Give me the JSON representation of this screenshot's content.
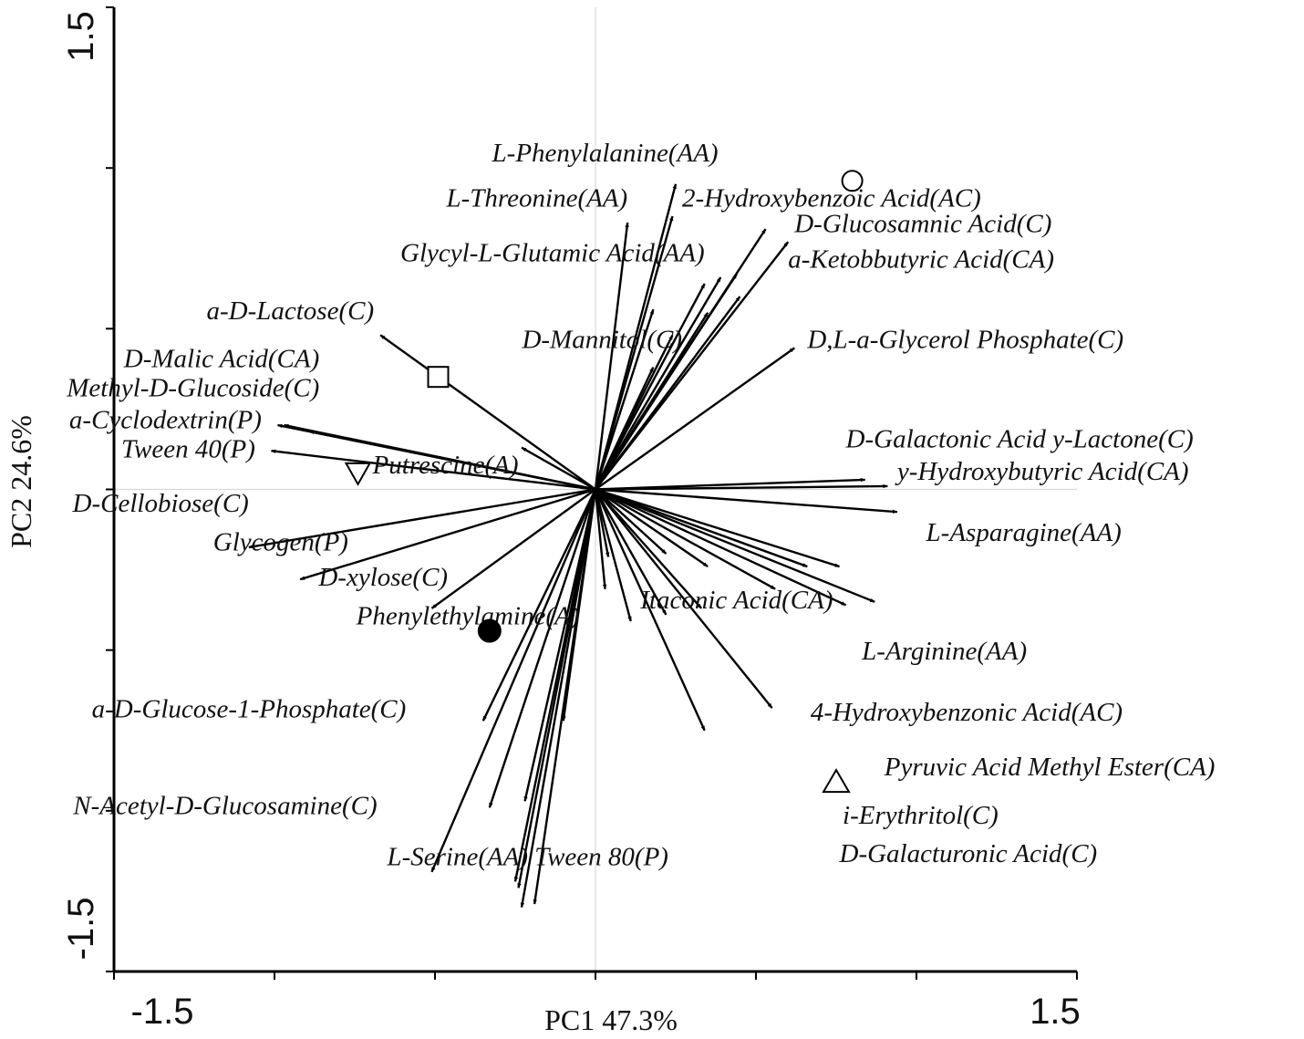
{
  "chart_data": {
    "type": "scatter",
    "subtype": "pca-biplot",
    "xlabel": "PC1  47.3%",
    "ylabel": "PC2  24.6%",
    "xlim": [
      -1.5,
      1.5
    ],
    "ylim": [
      -1.5,
      1.5
    ],
    "x_tick_labels": [
      "-1.5",
      "1.5"
    ],
    "y_tick_labels": [
      "1.5",
      "-1.5"
    ],
    "grid": false,
    "zero_lines": true,
    "vectors": [
      {
        "label": "L-Phenylalanine(AA)",
        "x": 0.25,
        "y": 0.95,
        "lx": 0.03,
        "ly": 1.02,
        "anchor": "middle"
      },
      {
        "label": "L-Threonine(AA)",
        "x": 0.1,
        "y": 0.83,
        "lx": 0.1,
        "ly": 0.88,
        "anchor": "end"
      },
      {
        "label": "2-Hydroxybenzoic Acid(AC)",
        "x": 0.24,
        "y": 0.85,
        "lx": 0.27,
        "ly": 0.88,
        "anchor": "start"
      },
      {
        "label": "D-Glucosamnic Acid(C)",
        "x": 0.53,
        "y": 0.81,
        "lx": 0.62,
        "ly": 0.8,
        "anchor": "start"
      },
      {
        "label": "a-Ketobbutyric Acid(CA)",
        "x": 0.6,
        "y": 0.77,
        "lx": 0.6,
        "ly": 0.69,
        "anchor": "start"
      },
      {
        "label": "Glycyl-L-Glutamic Acid(AA)",
        "x": 0.34,
        "y": 0.64,
        "lx": 0.34,
        "ly": 0.71,
        "anchor": "end"
      },
      {
        "label": "D-Mannitol(C)",
        "x": 0.39,
        "y": 0.66,
        "lx": 0.27,
        "ly": 0.44,
        "anchor": "end"
      },
      {
        "label": "D,L-a-Glycerol Phosphate(C)",
        "x": 0.62,
        "y": 0.44,
        "lx": 0.66,
        "ly": 0.44,
        "anchor": "start"
      },
      {
        "label": "a-D-Lactose(C)",
        "x": -0.67,
        "y": 0.48,
        "lx": -0.69,
        "ly": 0.53,
        "anchor": "end"
      },
      {
        "label": "D-Malic Acid(CA)",
        "x": -0.97,
        "y": 0.2,
        "lx": -0.86,
        "ly": 0.38,
        "anchor": "end"
      },
      {
        "label": "Methyl-D-Glucoside(C)",
        "x": -0.89,
        "y": 0.18,
        "lx": -0.86,
        "ly": 0.29,
        "anchor": "end"
      },
      {
        "label": "a-Cyclodextrin(P)",
        "x": -0.99,
        "y": 0.2,
        "lx": -1.04,
        "ly": 0.19,
        "anchor": "end"
      },
      {
        "label": "Tween 40(P)",
        "x": -1.01,
        "y": 0.12,
        "lx": -1.06,
        "ly": 0.1,
        "anchor": "end"
      },
      {
        "label": "Putrescine(A)",
        "x": -0.23,
        "y": 0.13,
        "lx": -0.24,
        "ly": 0.05,
        "anchor": "end"
      },
      {
        "label": "D-Cellobiose(C)",
        "x": -1.08,
        "y": -0.18,
        "lx": -1.08,
        "ly": -0.07,
        "anchor": "end"
      },
      {
        "label": "Glycogen(P)",
        "x": -0.92,
        "y": -0.28,
        "lx": -0.77,
        "ly": -0.19,
        "anchor": "end"
      },
      {
        "label": "D-xylose(C)",
        "x": -0.51,
        "y": -0.37,
        "lx": -0.46,
        "ly": -0.3,
        "anchor": "end"
      },
      {
        "label": "Phenylethylamine(A)",
        "x": -0.35,
        "y": -0.72,
        "lx": -0.05,
        "ly": -0.42,
        "anchor": "end"
      },
      {
        "label": "a-D-Glucose-1-Phosphate(C)",
        "x": -0.33,
        "y": -0.99,
        "lx": -0.59,
        "ly": -0.71,
        "anchor": "end"
      },
      {
        "label": "N-Acetyl-D-Glucosamine(C)",
        "x": -0.51,
        "y": -1.19,
        "lx": -0.68,
        "ly": -1.01,
        "anchor": "end"
      },
      {
        "label": "L-Serine(AA)",
        "x": -0.23,
        "y": -1.3,
        "lx": -0.21,
        "ly": -1.17,
        "anchor": "end"
      },
      {
        "label": "Tween 80(P)",
        "x": -0.19,
        "y": -1.29,
        "lx": -0.19,
        "ly": -1.17,
        "anchor": "start"
      },
      {
        "label": "D-Galactonic Acid y-Lactone(C)",
        "x": 0.84,
        "y": 0.03,
        "lx": 0.78,
        "ly": 0.13,
        "anchor": "start"
      },
      {
        "label": "y-Hydroxybutyric Acid(CA)",
        "x": 0.91,
        "y": 0.01,
        "lx": 0.94,
        "ly": 0.03,
        "anchor": "start"
      },
      {
        "label": "L-Asparagine(AA)",
        "x": 0.94,
        "y": -0.07,
        "lx": 1.03,
        "ly": -0.16,
        "anchor": "start"
      },
      {
        "label": "Itaconic Acid(CA)",
        "x": 0.04,
        "y": -0.21,
        "lx": 0.14,
        "ly": -0.37,
        "anchor": "start"
      },
      {
        "label": "L-Arginine(AA)",
        "x": 0.87,
        "y": -0.35,
        "lx": 0.83,
        "ly": -0.53,
        "anchor": "start"
      },
      {
        "label": "4-Hydroxybenzonic Acid(AC)",
        "x": 0.56,
        "y": -0.31,
        "lx": 0.67,
        "ly": -0.72,
        "anchor": "start"
      },
      {
        "label": "Pyruvic  Acid Methyl Ester(CA)",
        "x": 0.78,
        "y": -0.36,
        "lx": 0.9,
        "ly": -0.89,
        "anchor": "start"
      },
      {
        "label": "i-Erythritol(C)",
        "x": 0.55,
        "y": -0.68,
        "lx": 0.77,
        "ly": -1.04,
        "anchor": "start"
      },
      {
        "label": "D-Galacturonic Acid(C)",
        "x": 0.34,
        "y": -0.75,
        "lx": 0.76,
        "ly": -1.16,
        "anchor": "start"
      },
      {
        "label": "",
        "x": 0.44,
        "y": 0.67
      },
      {
        "label": "",
        "x": 0.45,
        "y": 0.6
      },
      {
        "label": "",
        "x": 0.18,
        "y": 0.56
      },
      {
        "label": "",
        "x": 0.24,
        "y": 0.48
      },
      {
        "label": "",
        "x": 0.18,
        "y": 0.38
      },
      {
        "label": "",
        "x": 0.35,
        "y": 0.55
      },
      {
        "label": "",
        "x": 0.76,
        "y": -0.24
      },
      {
        "label": "",
        "x": 0.66,
        "y": -0.24
      },
      {
        "label": "",
        "x": 0.35,
        "y": -0.24
      },
      {
        "label": "",
        "x": 0.22,
        "y": -0.2
      },
      {
        "label": "",
        "x": 0.33,
        "y": -0.37
      },
      {
        "label": "",
        "x": 0.22,
        "y": -0.39
      },
      {
        "label": "",
        "x": 0.03,
        "y": -0.31
      },
      {
        "label": "",
        "x": 0.11,
        "y": -0.41
      },
      {
        "label": "",
        "x": -0.22,
        "y": -0.97
      },
      {
        "label": "",
        "x": -0.24,
        "y": -1.24
      },
      {
        "label": "",
        "x": -0.25,
        "y": -1.22
      },
      {
        "label": "",
        "x": -0.1,
        "y": -0.72
      }
    ],
    "samples": [
      {
        "shape": "circle-open",
        "x": 0.8,
        "y": 0.96
      },
      {
        "shape": "square-open",
        "x": -0.49,
        "y": 0.35
      },
      {
        "shape": "triangle-down-open",
        "x": -0.74,
        "y": 0.05
      },
      {
        "shape": "circle-filled",
        "x": -0.33,
        "y": -0.44
      },
      {
        "shape": "triangle-up-open",
        "x": 0.75,
        "y": -0.91
      }
    ]
  }
}
